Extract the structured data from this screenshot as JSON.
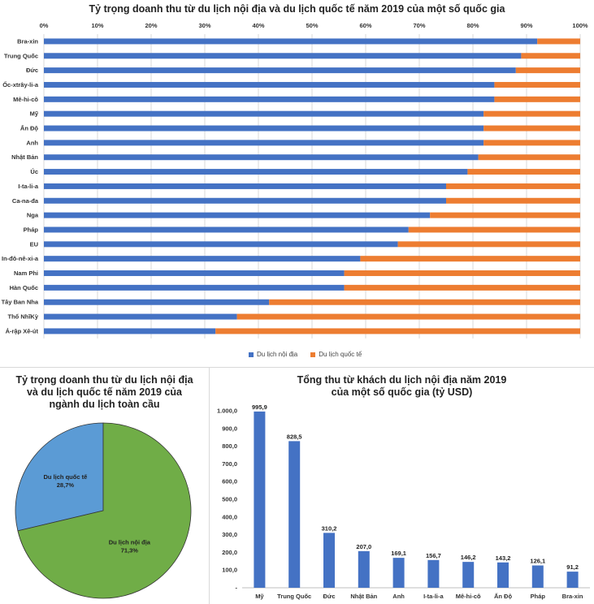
{
  "colors": {
    "domestic": "#4472C4",
    "international": "#ED7D31",
    "pie_domestic": "#70AD47",
    "pie_international": "#5B9BD5",
    "grid": "#d9d9d9"
  },
  "chart_data": [
    {
      "type": "bar",
      "orientation": "horizontal",
      "stacked_percent": true,
      "title": "Tỷ trọng doanh thu từ du lịch nội địa và du lịch quốc tế năm 2019 của một số quốc gia",
      "xlim": [
        0,
        100
      ],
      "tick_labels": [
        "0%",
        "10%",
        "20%",
        "30%",
        "40%",
        "50%",
        "60%",
        "70%",
        "80%",
        "90%",
        "100%"
      ],
      "categories": [
        "Bra-xin",
        "Trung Quốc",
        "Đức",
        "Ốc-xtrây-li-a",
        "Mê-hi-cô",
        "Mỹ",
        "Ấn Độ",
        "Anh",
        "Nhật Bản",
        "Úc",
        "I-ta-li-a",
        "Ca-na-đa",
        "Nga",
        "Pháp",
        "EU",
        "In-đô-nê-xi-a",
        "Nam Phi",
        "Hàn Quốc",
        "Tây Ban Nha",
        "Thổ NhĩKỳ",
        "Ả-rập Xê-út"
      ],
      "series": [
        {
          "name": "Du lịch nội địa",
          "values": [
            92,
            89,
            88,
            84,
            84,
            82,
            82,
            82,
            81,
            79,
            75,
            75,
            72,
            68,
            66,
            59,
            56,
            56,
            42,
            36,
            32
          ]
        },
        {
          "name": "Du lịch quốc tế",
          "values": [
            8,
            11,
            12,
            16,
            16,
            18,
            18,
            18,
            19,
            21,
            25,
            25,
            28,
            32,
            34,
            41,
            44,
            44,
            58,
            64,
            68
          ]
        }
      ],
      "legend_position": "bottom"
    },
    {
      "type": "pie",
      "title": "Tỷ trọng doanh thu từ du lịch nội địa\nvà du lịch quốc tế năm 2019 của\nngành du lịch toàn cầu",
      "slices": [
        {
          "label": "Du lịch quốc tế",
          "value": 28.7,
          "value_label": "28,7%"
        },
        {
          "label": "Du lịch nội địa",
          "value": 71.3,
          "value_label": "71,3%"
        }
      ]
    },
    {
      "type": "bar",
      "title": "Tổng thu từ khách du lịch nội địa năm 2019\ncủa một số quốc gia (tỷ USD)",
      "ylim": [
        0,
        1000
      ],
      "y_tick_labels": [
        "-",
        "100,0",
        "200,0",
        "300,0",
        "400,0",
        "500,0",
        "600,0",
        "700,0",
        "800,0",
        "900,0",
        "1.000,0"
      ],
      "categories": [
        "Mỹ",
        "Trung Quốc",
        "Đức",
        "Nhật Bản",
        "Anh",
        "I-ta-li-a",
        "Mê-hi-cô",
        "Ấn Độ",
        "Pháp",
        "Bra-xin"
      ],
      "values": [
        995.9,
        828.5,
        310.2,
        207.0,
        169.1,
        156.7,
        146.2,
        143.2,
        126.1,
        91.2
      ],
      "data_labels": [
        "995,9",
        "828,5",
        "310,2",
        "207,0",
        "169,1",
        "156,7",
        "146,2",
        "143,2",
        "126,1",
        "91,2"
      ]
    }
  ]
}
